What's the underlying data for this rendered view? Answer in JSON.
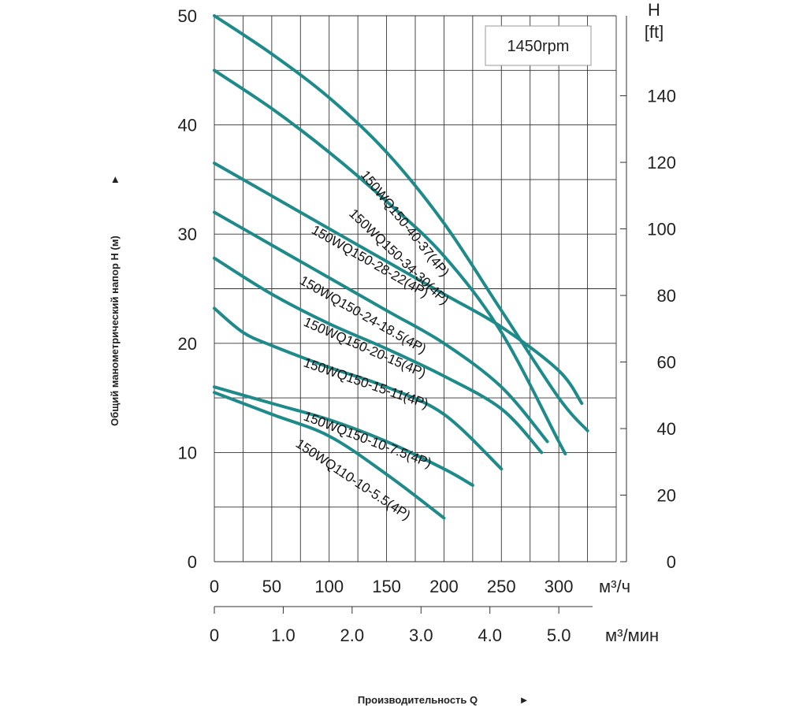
{
  "chart_data": {
    "type": "line",
    "speed_badge": "1450rpm",
    "ylabel": "Общий манометрический напор H (м)",
    "ylabel_arrow": "►",
    "xlabel": "Производительность Q",
    "xlabel_arrow": "►",
    "x_unit": "м³/ч",
    "x2_unit": "м³/мин",
    "y2_unit_top": "H",
    "y2_unit_bottom": "[ft]",
    "xlim": [
      0,
      350
    ],
    "ylim": [
      0,
      50
    ],
    "x_ticks": [
      "0",
      "50",
      "100",
      "150",
      "200",
      "250",
      "300"
    ],
    "x2_ticks": [
      "0",
      "1.0",
      "2.0",
      "3.0",
      "4.0",
      "5.0"
    ],
    "y_ticks": [
      "0",
      "10",
      "20",
      "30",
      "40",
      "50"
    ],
    "y2_ticks": [
      "0",
      "20",
      "40",
      "60",
      "80",
      "100",
      "120",
      "140"
    ],
    "grid": true,
    "line_color": "#1f8a8a",
    "series": [
      {
        "name": "150WQ150-40-37(4P)",
        "x": [
          0,
          50,
          100,
          150,
          200,
          250,
          300,
          325
        ],
        "y": [
          50,
          46.5,
          42.5,
          37.5,
          31,
          23,
          15,
          12
        ]
      },
      {
        "name": "150WQ150-34-30(4P)",
        "x": [
          0,
          50,
          100,
          150,
          200,
          250,
          300,
          305
        ],
        "y": [
          45,
          41.5,
          37.5,
          33,
          28,
          21,
          11,
          10
        ]
      },
      {
        "name": "150WQ150-28-22(4P)",
        "x": [
          0,
          50,
          100,
          150,
          200,
          250,
          300,
          320
        ],
        "y": [
          36.5,
          33.5,
          30.5,
          27.5,
          24.5,
          21.5,
          17.5,
          14.5
        ]
      },
      {
        "name": "150WQ150-24-18.5(4P)",
        "x": [
          0,
          50,
          100,
          150,
          200,
          250,
          290
        ],
        "y": [
          32,
          29,
          26,
          23,
          20,
          16,
          11
        ]
      },
      {
        "name": "150WQ150-20-15(4P)",
        "x": [
          0,
          50,
          100,
          150,
          200,
          250,
          285
        ],
        "y": [
          27.8,
          24.5,
          21.8,
          19.5,
          17,
          14,
          10
        ]
      },
      {
        "name": "150WQ150-15-11(4P)",
        "x": [
          0,
          25,
          50,
          100,
          150,
          200,
          250
        ],
        "y": [
          23.2,
          21,
          19.8,
          17.8,
          16,
          13.5,
          8.5
        ]
      },
      {
        "name": "150WQ150-10-7.5(4P)",
        "x": [
          0,
          50,
          100,
          150,
          200,
          225
        ],
        "y": [
          16,
          14.5,
          13,
          11,
          8.5,
          7
        ]
      },
      {
        "name": "150WQ110-10-5.5(4P)",
        "x": [
          0,
          50,
          100,
          150,
          200
        ],
        "y": [
          15.5,
          13.5,
          11.5,
          8,
          4
        ]
      }
    ]
  }
}
